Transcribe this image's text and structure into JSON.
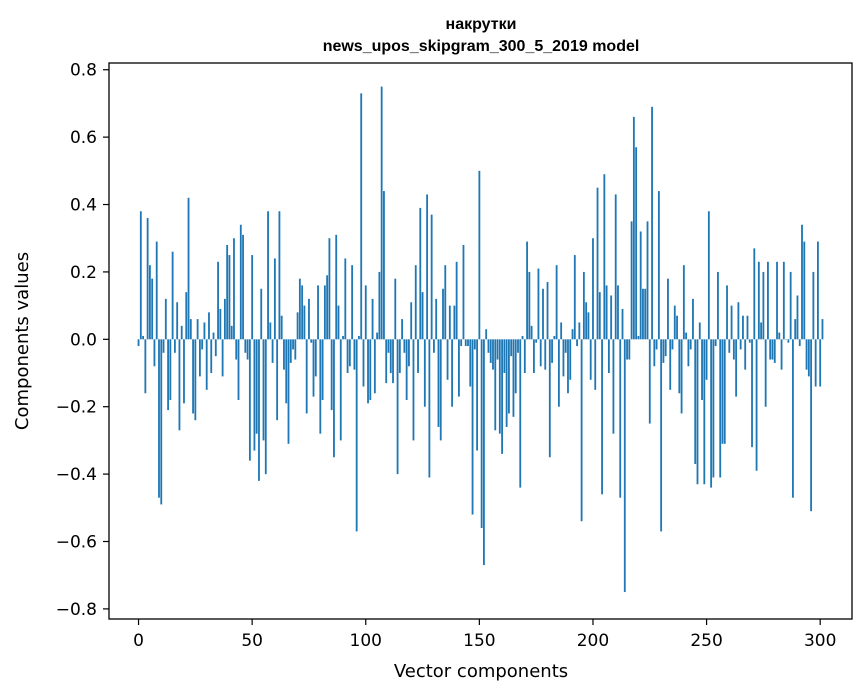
{
  "chart_data": {
    "type": "bar",
    "title": [
      "накрутки",
      "news_upos_skipgram_300_5_2019 model"
    ],
    "xlabel": "Vector components",
    "ylabel": "Components values",
    "xlim": [
      -13,
      314
    ],
    "ylim": [
      -0.83,
      0.82
    ],
    "xticks": [
      0,
      50,
      100,
      150,
      200,
      250,
      300
    ],
    "xtick_labels": [
      "0",
      "50",
      "100",
      "150",
      "200",
      "250",
      "300"
    ],
    "yticks": [
      -0.8,
      -0.6,
      -0.4,
      -0.2,
      0.0,
      0.2,
      0.4,
      0.6,
      0.8
    ],
    "ytick_labels": [
      "−0.8",
      "−0.6",
      "−0.4",
      "−0.2",
      "0.0",
      "0.2",
      "0.4",
      "0.6",
      "0.8"
    ],
    "grid": false,
    "color": "#1f77b4",
    "values": [
      -0.02,
      0.38,
      0.01,
      -0.16,
      0.36,
      0.22,
      0.18,
      -0.08,
      0.29,
      -0.47,
      -0.49,
      -0.04,
      0.12,
      -0.21,
      -0.18,
      0.26,
      -0.04,
      0.11,
      -0.27,
      0.04,
      -0.19,
      0.14,
      0.42,
      0.06,
      -0.22,
      -0.24,
      0.06,
      -0.11,
      -0.03,
      0.05,
      -0.15,
      0.08,
      -0.1,
      0.02,
      -0.05,
      0.23,
      0.09,
      -0.11,
      0.12,
      0.28,
      0.25,
      0.04,
      0.3,
      -0.06,
      -0.18,
      0.34,
      0.31,
      -0.04,
      -0.06,
      -0.36,
      0.25,
      -0.33,
      -0.28,
      -0.42,
      0.15,
      -0.3,
      -0.4,
      0.38,
      0.05,
      -0.07,
      0.24,
      -0.24,
      0.38,
      0.07,
      -0.09,
      -0.19,
      -0.31,
      -0.07,
      -0.03,
      -0.06,
      0.08,
      0.18,
      0.16,
      0.1,
      -0.22,
      0.12,
      -0.01,
      -0.17,
      -0.11,
      0.16,
      -0.28,
      -0.18,
      0.16,
      0.19,
      0.3,
      -0.21,
      -0.35,
      0.31,
      0.1,
      -0.3,
      0.01,
      0.24,
      -0.1,
      -0.08,
      0.22,
      -0.09,
      -0.57,
      0.01,
      0.73,
      -0.14,
      0.16,
      -0.19,
      -0.18,
      0.12,
      -0.16,
      0.02,
      0.2,
      0.75,
      0.44,
      -0.13,
      -0.04,
      -0.1,
      -0.13,
      0.18,
      -0.4,
      -0.1,
      0.06,
      -0.04,
      -0.18,
      -0.08,
      0.11,
      -0.3,
      0.22,
      -0.1,
      0.39,
      0.14,
      -0.2,
      0.43,
      -0.41,
      0.37,
      -0.04,
      0.12,
      -0.26,
      -0.3,
      0.15,
      0.22,
      -0.12,
      0.1,
      -0.2,
      0.1,
      0.23,
      -0.17,
      -0.02,
      0.28,
      -0.02,
      -0.02,
      -0.14,
      -0.52,
      -0.03,
      -0.33,
      0.5,
      -0.56,
      -0.67,
      0.03,
      -0.04,
      -0.07,
      -0.09,
      -0.27,
      -0.06,
      -0.28,
      -0.34,
      -0.1,
      -0.26,
      -0.22,
      -0.05,
      -0.23,
      -0.16,
      -0.04,
      -0.44,
      0.01,
      -0.1,
      0.29,
      0.2,
      0.04,
      -0.1,
      -0.01,
      0.21,
      -0.08,
      0.15,
      -0.09,
      0.17,
      -0.35,
      -0.07,
      0.01,
      0.22,
      -0.2,
      0.05,
      -0.11,
      -0.04,
      -0.16,
      -0.12,
      0.03,
      0.25,
      -0.02,
      0.05,
      -0.54,
      0.2,
      0.11,
      0.08,
      -0.12,
      0.3,
      -0.15,
      0.45,
      0.14,
      -0.46,
      0.49,
      0.16,
      -0.1,
      0.13,
      -0.28,
      0.43,
      0.16,
      -0.47,
      0.09,
      -0.75,
      -0.06,
      -0.06,
      0.35,
      0.66,
      0.57,
      0.01,
      0.32,
      0.15,
      0.15,
      0.35,
      -0.25,
      0.69,
      -0.08,
      -0.03,
      0.44,
      -0.57,
      -0.07,
      -0.05,
      0.18,
      -0.15,
      -0.03,
      0.1,
      0.07,
      -0.16,
      -0.22,
      0.22,
      0.02,
      -0.08,
      -0.03,
      0.12,
      -0.37,
      -0.43,
      0.05,
      -0.18,
      -0.43,
      -0.12,
      0.38,
      -0.44,
      -0.41,
      -0.02,
      0.2,
      -0.41,
      -0.31,
      -0.31,
      0.16,
      -0.04,
      0.1,
      -0.06,
      -0.17,
      0.11,
      -0.03,
      0.07,
      -0.09,
      0.07,
      -0.01,
      -0.32,
      0.27,
      -0.39,
      0.23,
      0.05,
      0.2,
      -0.2,
      0.23,
      -0.06,
      -0.06,
      -0.07,
      0.23,
      0.02,
      -0.09,
      0.23,
      0.0,
      -0.01,
      0.2,
      -0.47,
      0.06,
      0.13,
      -0.02,
      0.34,
      0.29,
      -0.09,
      -0.11,
      -0.51,
      0.2,
      -0.14,
      0.29,
      -0.14,
      0.06
    ]
  }
}
